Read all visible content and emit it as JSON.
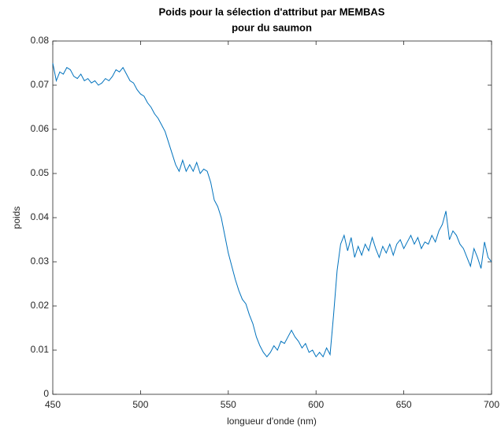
{
  "chart_data": {
    "type": "line",
    "title": [
      "Poids pour la sélection d'attribut par MEMBAS",
      "pour du saumon"
    ],
    "xlabel": "longueur d'onde (nm)",
    "ylabel": "poids",
    "x": [
      450,
      452,
      454,
      456,
      458,
      460,
      462,
      464,
      466,
      468,
      470,
      472,
      474,
      476,
      478,
      480,
      482,
      484,
      486,
      488,
      490,
      492,
      494,
      496,
      498,
      500,
      502,
      504,
      506,
      508,
      510,
      512,
      514,
      516,
      518,
      520,
      522,
      524,
      526,
      528,
      530,
      532,
      534,
      536,
      538,
      540,
      542,
      544,
      546,
      548,
      550,
      552,
      554,
      556,
      558,
      560,
      562,
      564,
      566,
      568,
      570,
      572,
      574,
      576,
      578,
      580,
      582,
      584,
      586,
      588,
      590,
      592,
      594,
      596,
      598,
      600,
      602,
      604,
      606,
      608,
      610,
      612,
      614,
      616,
      618,
      620,
      622,
      624,
      626,
      628,
      630,
      632,
      634,
      636,
      638,
      640,
      642,
      644,
      646,
      648,
      650,
      652,
      654,
      656,
      658,
      660,
      662,
      664,
      666,
      668,
      670,
      672,
      674,
      676,
      678,
      680,
      682,
      684,
      686,
      688,
      690,
      692,
      694,
      696,
      698,
      700
    ],
    "series": [
      {
        "name": "poids",
        "color": "#0072bd",
        "values": [
          0.075,
          0.071,
          0.073,
          0.0725,
          0.074,
          0.0735,
          0.072,
          0.0715,
          0.0725,
          0.071,
          0.0715,
          0.0705,
          0.071,
          0.07,
          0.0705,
          0.0715,
          0.071,
          0.072,
          0.0735,
          0.073,
          0.074,
          0.0725,
          0.071,
          0.0705,
          0.069,
          0.068,
          0.0675,
          0.066,
          0.065,
          0.0635,
          0.0625,
          0.061,
          0.0595,
          0.057,
          0.0545,
          0.052,
          0.0505,
          0.053,
          0.0505,
          0.052,
          0.0505,
          0.0525,
          0.05,
          0.051,
          0.0505,
          0.048,
          0.044,
          0.0425,
          0.04,
          0.036,
          0.032,
          0.029,
          0.026,
          0.0235,
          0.0215,
          0.0205,
          0.018,
          0.016,
          0.013,
          0.011,
          0.0095,
          0.0085,
          0.0095,
          0.011,
          0.01,
          0.012,
          0.0115,
          0.013,
          0.0145,
          0.013,
          0.012,
          0.0105,
          0.0115,
          0.0095,
          0.01,
          0.0085,
          0.0095,
          0.0085,
          0.0105,
          0.009,
          0.018,
          0.028,
          0.034,
          0.036,
          0.0325,
          0.0355,
          0.031,
          0.0335,
          0.0315,
          0.034,
          0.0325,
          0.0355,
          0.033,
          0.031,
          0.0335,
          0.032,
          0.034,
          0.0315,
          0.034,
          0.035,
          0.033,
          0.0345,
          0.036,
          0.034,
          0.0355,
          0.033,
          0.0345,
          0.034,
          0.036,
          0.0345,
          0.037,
          0.0385,
          0.0415,
          0.035,
          0.037,
          0.036,
          0.034,
          0.033,
          0.031,
          0.029,
          0.033,
          0.031,
          0.0285,
          0.0345,
          0.031,
          0.03
        ]
      }
    ],
    "xlim": [
      450,
      700
    ],
    "xticks": [
      450,
      500,
      550,
      600,
      650,
      700
    ],
    "ylim": [
      0,
      0.08
    ],
    "yticks": [
      0,
      0.01,
      0.02,
      0.03,
      0.04,
      0.05,
      0.06,
      0.07,
      0.08
    ],
    "grid": false
  }
}
